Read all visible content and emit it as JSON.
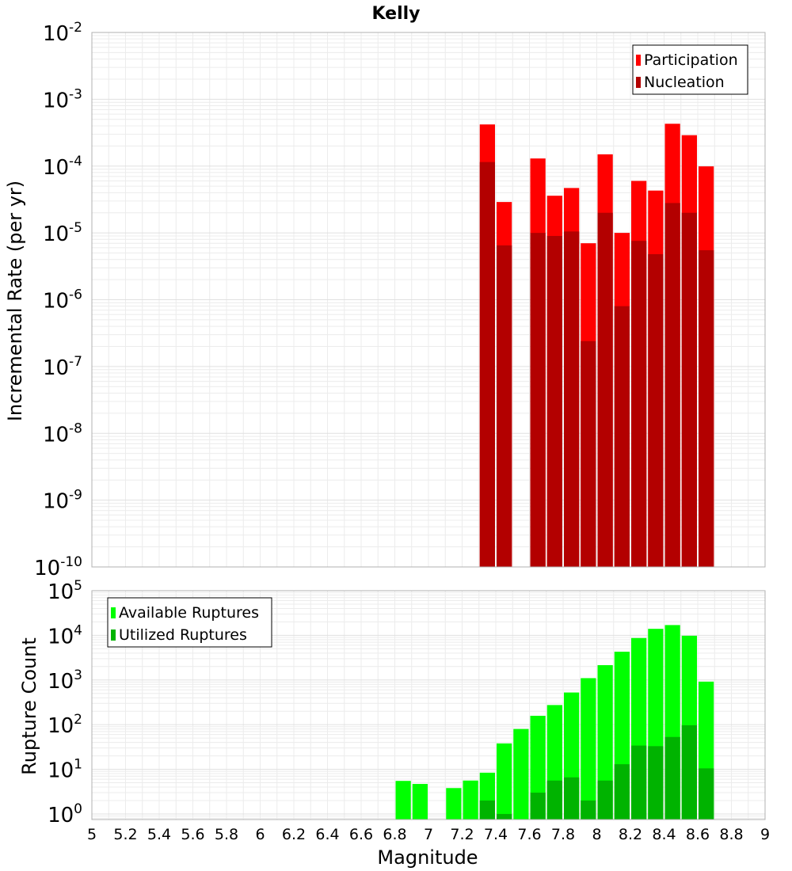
{
  "chart_data": [
    {
      "type": "bar",
      "title": "Kelly",
      "xlabel": "",
      "ylabel": "Incremental Rate (per yr)",
      "yscale": "log",
      "ylim": [
        1e-10,
        0.01
      ],
      "xlim": [
        5,
        9
      ],
      "grid": true,
      "legend": "top-right",
      "x": [
        7.35,
        7.45,
        7.55,
        7.65,
        7.75,
        7.85,
        7.95,
        8.05,
        8.15,
        8.25,
        8.35,
        8.45,
        8.55,
        8.65
      ],
      "series": [
        {
          "name": "Participation",
          "color": "#ff0000",
          "values": [
            0.00042,
            2.9e-05,
            null,
            0.00013,
            3.6e-05,
            4.7e-05,
            7e-06,
            0.00015,
            1e-05,
            6e-05,
            4.3e-05,
            0.00043,
            0.00029,
            9.9e-05
          ]
        },
        {
          "name": "Nucleation",
          "color": "#b30000",
          "values": [
            0.000115,
            6.5e-06,
            null,
            1e-05,
            9e-06,
            1.05e-05,
            2.4e-07,
            2e-05,
            8e-07,
            7.6e-06,
            4.8e-06,
            2.8e-05,
            2e-05,
            5.5e-06
          ]
        }
      ],
      "yticks": [
        {
          "base": "10",
          "exp": "-2"
        },
        {
          "base": "10",
          "exp": "-3"
        },
        {
          "base": "10",
          "exp": "-4"
        },
        {
          "base": "10",
          "exp": "-5"
        },
        {
          "base": "10",
          "exp": "-6"
        },
        {
          "base": "10",
          "exp": "-7"
        },
        {
          "base": "10",
          "exp": "-8"
        },
        {
          "base": "10",
          "exp": "-9"
        },
        {
          "base": "10",
          "exp": "-10"
        }
      ]
    },
    {
      "type": "bar",
      "title": "",
      "xlabel": "Magnitude",
      "ylabel": "Rupture Count",
      "yscale": "log",
      "ylim": [
        0.75,
        100000
      ],
      "xlim": [
        5,
        9
      ],
      "grid": true,
      "legend": "top-left",
      "x": [
        6.85,
        6.95,
        7.05,
        7.15,
        7.25,
        7.35,
        7.45,
        7.55,
        7.65,
        7.75,
        7.85,
        7.95,
        8.05,
        8.15,
        8.25,
        8.35,
        8.45,
        8.55,
        8.65
      ],
      "series": [
        {
          "name": "Available Ruptures",
          "color": "#00ff00",
          "values": [
            5.5,
            4.7,
            null,
            3.8,
            5.6,
            8.4,
            38,
            80,
            158,
            275,
            525,
            1100,
            2150,
            4300,
            8700,
            14000,
            17000,
            9800,
            920
          ]
        },
        {
          "name": "Utilized Ruptures",
          "color": "#00b300",
          "values": [
            null,
            null,
            null,
            null,
            null,
            2,
            1,
            null,
            3,
            5.6,
            6.6,
            2,
            5.6,
            13,
            34,
            33,
            53,
            97,
            10.5
          ]
        }
      ],
      "xticks": [
        "5",
        "5.2",
        "5.4",
        "5.6",
        "5.8",
        "6",
        "6.2",
        "6.4",
        "6.6",
        "6.8",
        "7",
        "7.2",
        "7.4",
        "7.6",
        "7.8",
        "8",
        "8.2",
        "8.4",
        "8.6",
        "8.8",
        "9"
      ],
      "yticks": [
        {
          "base": "10",
          "exp": "5"
        },
        {
          "base": "10",
          "exp": "4"
        },
        {
          "base": "10",
          "exp": "3"
        },
        {
          "base": "10",
          "exp": "2"
        },
        {
          "base": "10",
          "exp": "1"
        },
        {
          "base": "10",
          "exp": "0"
        }
      ]
    }
  ]
}
